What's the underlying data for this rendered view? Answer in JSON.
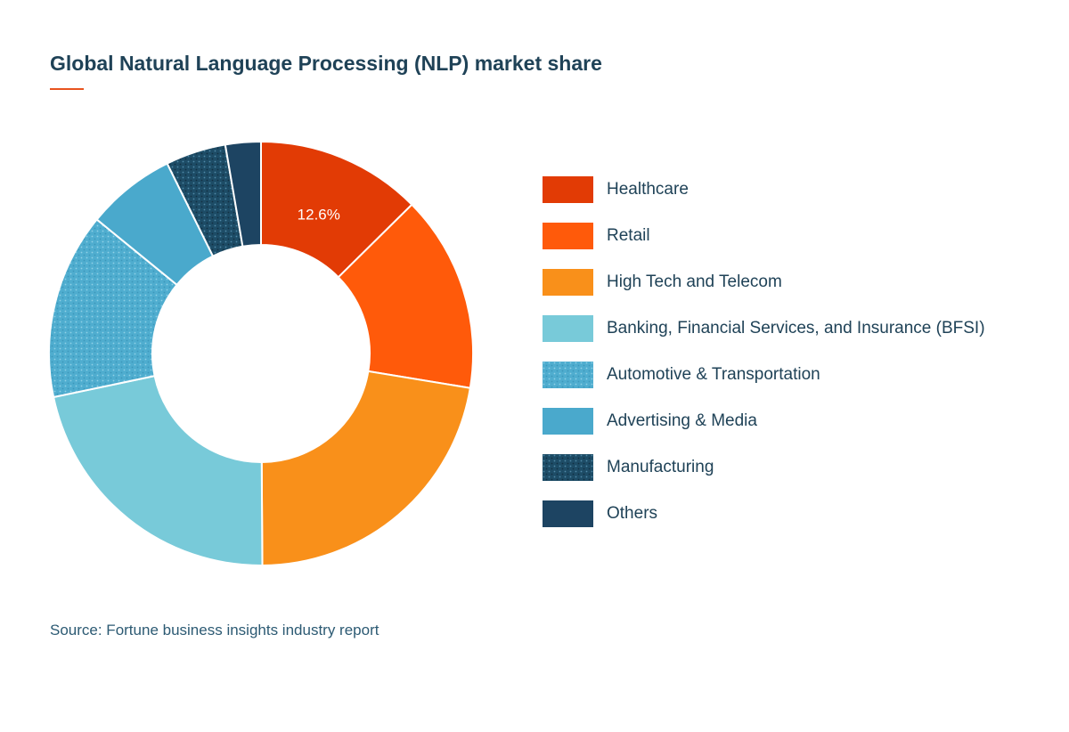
{
  "chart_data": {
    "type": "pie",
    "title": "Global Natural Language Processing (NLP) market share",
    "legend_position": "right",
    "categories": [
      "Healthcare",
      "Retail",
      "High Tech and Telecom",
      "Banking, Financial Services, and Insurance (BFSI)",
      "Automotive & Transportation",
      "Advertising & Media",
      "Manufacturing",
      "Others"
    ],
    "values": [
      12.6,
      15.0,
      22.3,
      21.8,
      14.2,
      6.8,
      4.6,
      2.7
    ],
    "colors": [
      "#e23b05",
      "#ff5a0a",
      "#f9901a",
      "#78cad9",
      "#4fadcf",
      "#4aa9cc",
      "#1d4c66",
      "#1d4462"
    ],
    "patterns": [
      "solid",
      "solid",
      "solid",
      "solid",
      "dotted",
      "solid",
      "dotted",
      "solid"
    ],
    "data_labels": [
      "12.6%",
      "",
      "",
      "",
      "",
      "",
      "",
      ""
    ]
  },
  "source": "Source: Fortune business insights industry report"
}
